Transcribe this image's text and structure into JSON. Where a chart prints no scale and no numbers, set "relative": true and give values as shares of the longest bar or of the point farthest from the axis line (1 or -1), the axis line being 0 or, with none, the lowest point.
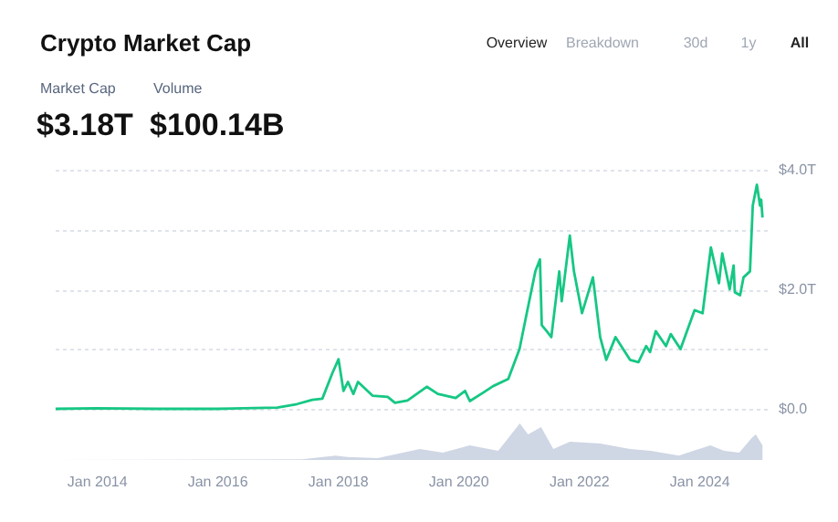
{
  "chart_data": [
    {
      "type": "line",
      "title": "Crypto Market Cap",
      "annotations": [
        "Market Cap",
        "Volume",
        "$3.18T",
        "$100.14B",
        "Overview",
        "Breakdown",
        "30d",
        "1y",
        "All"
      ],
      "x": [
        "2013-04-28",
        "2014-01-01",
        "2015-01-01",
        "2016-01-01",
        "2017-01-01",
        "2017-05-01",
        "2017-08-01",
        "2017-10-01",
        "2017-12-01",
        "2018-01-07",
        "2018-02-06",
        "2018-03-05",
        "2018-04-07",
        "2018-05-05",
        "2018-08-01",
        "2018-11-01",
        "2018-12-15",
        "2019-03-01",
        "2019-06-26",
        "2019-09-01",
        "2019-12-18",
        "2020-02-13",
        "2020-03-13",
        "2020-06-01",
        "2020-08-01",
        "2020-11-01",
        "2021-01-08",
        "2021-02-21",
        "2021-04-14",
        "2021-05-12",
        "2021-05-23",
        "2021-06-22",
        "2021-07-20",
        "2021-09-06",
        "2021-09-21",
        "2021-11-09",
        "2021-12-04",
        "2022-01-22",
        "2022-03-29",
        "2022-05-12",
        "2022-06-18",
        "2022-08-13",
        "2022-11-09",
        "2022-12-30",
        "2023-02-15",
        "2023-03-10",
        "2023-04-14",
        "2023-06-15",
        "2023-07-14",
        "2023-09-11",
        "2023-10-27",
        "2023-12-05",
        "2024-01-23",
        "2024-03-13",
        "2024-05-01",
        "2024-05-21",
        "2024-07-05",
        "2024-07-29",
        "2024-08-05",
        "2024-09-06",
        "2024-09-27",
        "2024-11-05",
        "2024-11-22",
        "2024-12-17",
        "2025-01-05",
        "2025-01-12",
        "2025-01-20"
      ],
      "series": [
        {
          "color": "#16c784",
          "values": [
            0,
            0.01,
            0,
            0,
            0.02,
            0.08,
            0.15,
            0.17,
            0.6,
            0.83,
            0.3,
            0.45,
            0.25,
            0.45,
            0.22,
            0.2,
            0.1,
            0.14,
            0.37,
            0.25,
            0.18,
            0.3,
            0.13,
            0.27,
            0.38,
            0.5,
            1.0,
            1.6,
            2.3,
            2.5,
            1.4,
            1.3,
            1.2,
            2.3,
            1.8,
            2.9,
            2.3,
            1.6,
            2.2,
            1.2,
            0.82,
            1.2,
            0.82,
            0.78,
            1.05,
            0.95,
            1.3,
            1.05,
            1.25,
            1.0,
            1.35,
            1.65,
            1.6,
            2.7,
            2.1,
            2.6,
            2.0,
            2.4,
            1.95,
            1.9,
            2.2,
            2.3,
            3.4,
            3.75,
            3.4,
            3.5,
            3.2
          ]
        }
      ],
      "xlim": [
        "2013-04-01",
        "2025-02-15"
      ],
      "ylim": [
        0,
        4
      ],
      "yticks": [
        {
          "value": 0,
          "label": "$0.0"
        },
        {
          "value": 1,
          "label": null
        },
        {
          "value": 2,
          "label": "$2.0T"
        },
        {
          "value": 3,
          "label": null
        },
        {
          "value": 4,
          "label": "$4.0T"
        }
      ],
      "grid": "y",
      "tick_labels": "y"
    },
    {
      "type": "area",
      "relative": true,
      "x": [
        "2013-04-28",
        "2017-06-01",
        "2017-12-20",
        "2018-03-01",
        "2018-09-01",
        "2019-05-15",
        "2019-10-01",
        "2020-03-13",
        "2020-09-01",
        "2021-01-10",
        "2021-03-01",
        "2021-05-19",
        "2021-08-01",
        "2021-11-10",
        "2022-05-12",
        "2022-11-09",
        "2023-03-15",
        "2023-09-01",
        "2024-03-10",
        "2024-06-01",
        "2024-09-01",
        "2024-11-15",
        "2024-12-10",
        "2025-01-20"
      ],
      "series": [
        {
          "color": "#cfd6e4",
          "values": [
            0,
            0.02,
            0.12,
            0.08,
            0.05,
            0.3,
            0.2,
            0.4,
            0.25,
            1.0,
            0.7,
            0.9,
            0.3,
            0.5,
            0.45,
            0.3,
            0.25,
            0.12,
            0.4,
            0.25,
            0.2,
            0.6,
            0.7,
            0.4
          ]
        }
      ],
      "xlim": [
        "2013-04-01",
        "2025-02-15"
      ],
      "xticks": [
        {
          "value": "2014-01-01",
          "label": "Jan 2014"
        },
        {
          "value": "2016-01-01",
          "label": "Jan 2016"
        },
        {
          "value": "2018-01-01",
          "label": "Jan 2018"
        },
        {
          "value": "2020-01-01",
          "label": "Jan 2020"
        },
        {
          "value": "2022-01-01",
          "label": "Jan 2022"
        },
        {
          "value": "2024-01-01",
          "label": "Jan 2024"
        }
      ],
      "tick_labels": "x"
    }
  ]
}
